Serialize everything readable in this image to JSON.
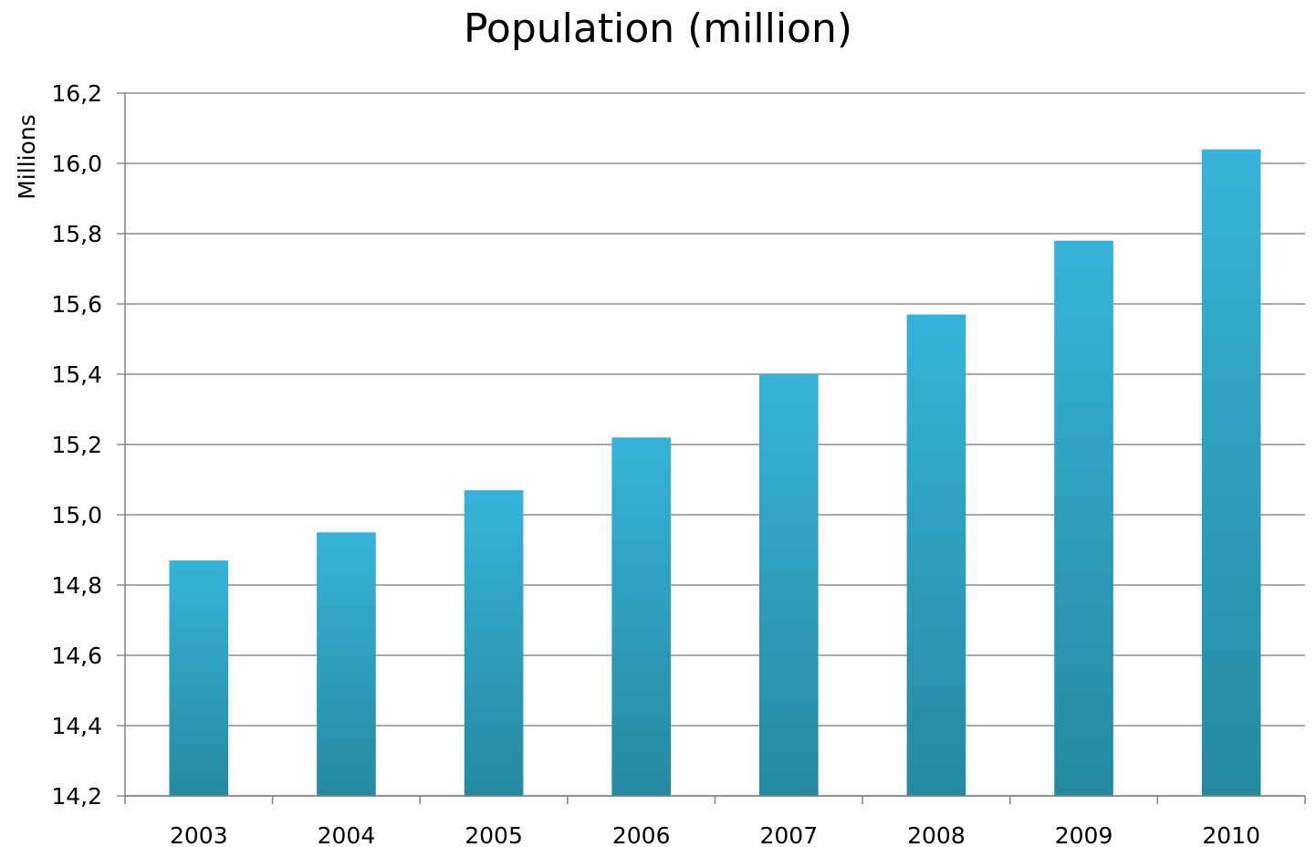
{
  "chart_data": {
    "type": "bar",
    "title": "Population (million)",
    "xlabel": "",
    "ylabel": "Millions",
    "categories": [
      "2003",
      "2004",
      "2005",
      "2006",
      "2007",
      "2008",
      "2009",
      "2010"
    ],
    "values": [
      14.87,
      14.95,
      15.07,
      15.22,
      15.4,
      15.57,
      15.78,
      16.04
    ],
    "ylim": [
      14.2,
      16.2
    ],
    "yticks": [
      "14,2",
      "14,4",
      "14,6",
      "14,8",
      "15,0",
      "15,2",
      "15,4",
      "15,6",
      "15,8",
      "16,0",
      "16,2"
    ],
    "grid": true,
    "legend": "none",
    "colors": {
      "bar_top": "#36B3D9",
      "bar_bottom": "#258AA0",
      "grid": "#8C8C8C",
      "axis": "#808080"
    }
  }
}
